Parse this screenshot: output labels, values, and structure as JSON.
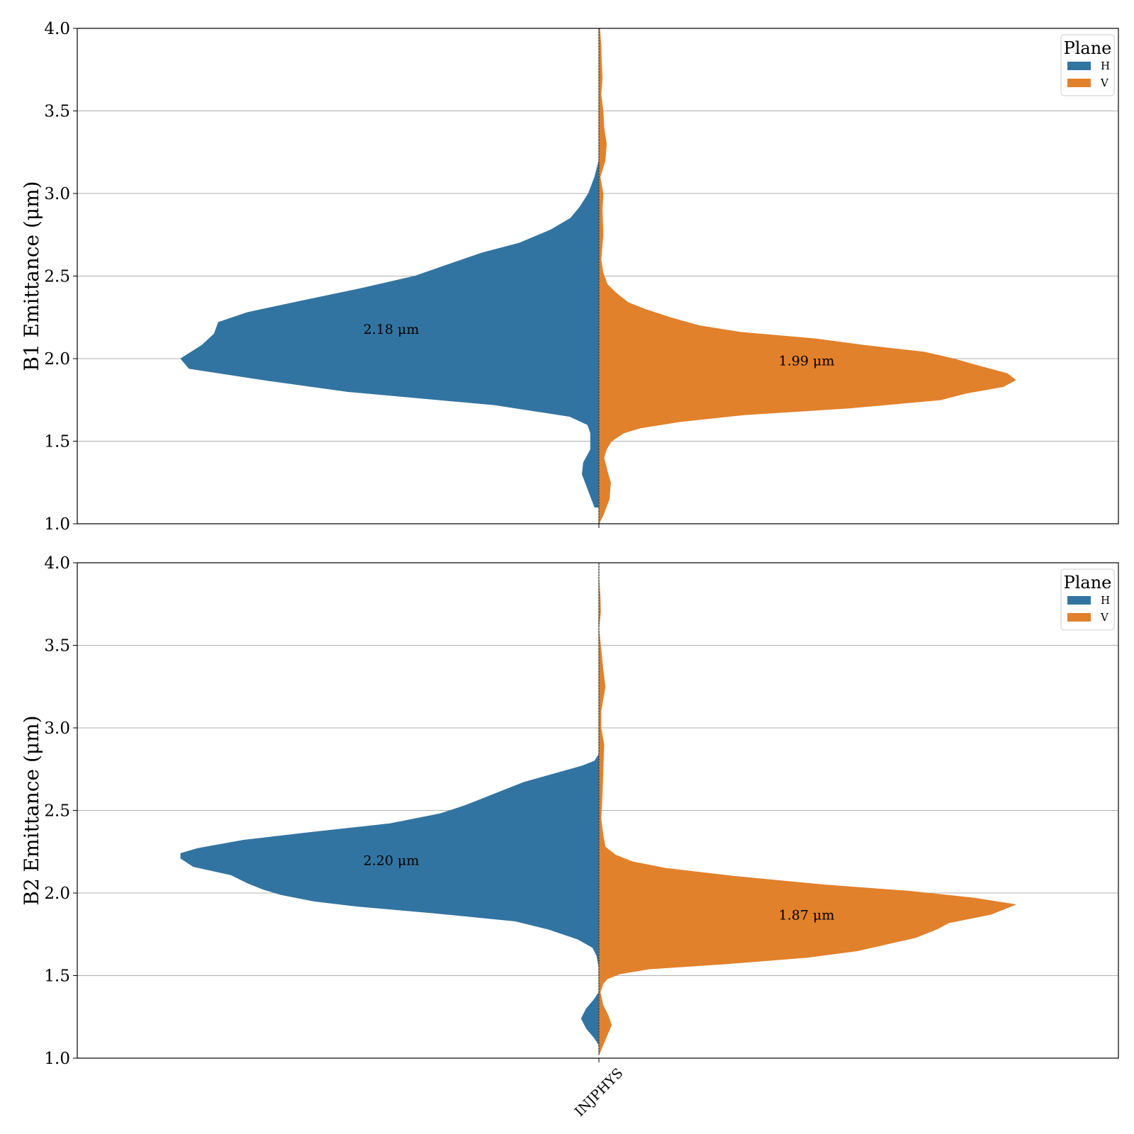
{
  "chart_data": [
    {
      "type": "violin",
      "ylabel": "B1 Emittance (μm)",
      "ylim": [
        1.0,
        4.0
      ],
      "yticks": [
        "1.0",
        "1.5",
        "2.0",
        "2.5",
        "3.0",
        "3.5",
        "4.0"
      ],
      "grid": true,
      "categories": [
        "INJPHYS"
      ],
      "legend": {
        "title": "Plane",
        "placement": "top-right"
      },
      "series": [
        {
          "name": "H",
          "color": "#3274a1",
          "side": "left",
          "annotation": {
            "label": "2.18 μm",
            "y": 2.18
          },
          "profile": [
            [
              1.1,
              0.01
            ],
            [
              1.2,
              0.025
            ],
            [
              1.3,
              0.04
            ],
            [
              1.37,
              0.037
            ],
            [
              1.45,
              0.02
            ],
            [
              1.55,
              0.02
            ],
            [
              1.6,
              0.027
            ],
            [
              1.65,
              0.07
            ],
            [
              1.72,
              0.25
            ],
            [
              1.8,
              0.6
            ],
            [
              1.87,
              0.8
            ],
            [
              1.94,
              0.98
            ],
            [
              2.0,
              1.0
            ],
            [
              2.08,
              0.95
            ],
            [
              2.15,
              0.92
            ],
            [
              2.22,
              0.91
            ],
            [
              2.28,
              0.84
            ],
            [
              2.35,
              0.71
            ],
            [
              2.43,
              0.56
            ],
            [
              2.5,
              0.44
            ],
            [
              2.57,
              0.36
            ],
            [
              2.64,
              0.28
            ],
            [
              2.7,
              0.19
            ],
            [
              2.78,
              0.115
            ],
            [
              2.85,
              0.068
            ],
            [
              2.92,
              0.045
            ],
            [
              3.0,
              0.025
            ],
            [
              3.1,
              0.01
            ],
            [
              3.2,
              0.0
            ]
          ]
        },
        {
          "name": "V",
          "color": "#e1812c",
          "side": "right",
          "annotation": {
            "label": "1.99 μm",
            "y": 1.99
          },
          "profile": [
            [
              1.0,
              0.0
            ],
            [
              1.05,
              0.01
            ],
            [
              1.15,
              0.025
            ],
            [
              1.25,
              0.028
            ],
            [
              1.32,
              0.02
            ],
            [
              1.4,
              0.012
            ],
            [
              1.45,
              0.018
            ],
            [
              1.5,
              0.03
            ],
            [
              1.55,
              0.06
            ],
            [
              1.58,
              0.1
            ],
            [
              1.62,
              0.2
            ],
            [
              1.66,
              0.35
            ],
            [
              1.7,
              0.6
            ],
            [
              1.75,
              0.82
            ],
            [
              1.79,
              0.88
            ],
            [
              1.83,
              0.97
            ],
            [
              1.87,
              1.0
            ],
            [
              1.91,
              0.98
            ],
            [
              1.95,
              0.92
            ],
            [
              2.0,
              0.85
            ],
            [
              2.04,
              0.78
            ],
            [
              2.08,
              0.64
            ],
            [
              2.12,
              0.52
            ],
            [
              2.16,
              0.34
            ],
            [
              2.2,
              0.24
            ],
            [
              2.25,
              0.17
            ],
            [
              2.3,
              0.11
            ],
            [
              2.34,
              0.07
            ],
            [
              2.4,
              0.04
            ],
            [
              2.45,
              0.02
            ],
            [
              2.52,
              0.01
            ],
            [
              2.6,
              0.005
            ],
            [
              2.75,
              0.01
            ],
            [
              2.9,
              0.008
            ],
            [
              3.0,
              0.01
            ],
            [
              3.1,
              0.003
            ],
            [
              3.2,
              0.015
            ],
            [
              3.3,
              0.018
            ],
            [
              3.4,
              0.012
            ],
            [
              3.5,
              0.01
            ],
            [
              3.6,
              0.005
            ],
            [
              3.7,
              0.008
            ],
            [
              3.8,
              0.006
            ],
            [
              3.9,
              0.005
            ],
            [
              4.0,
              0.002
            ]
          ]
        }
      ]
    },
    {
      "type": "violin",
      "ylabel": "B2 Emittance (μm)",
      "ylim": [
        1.0,
        4.0
      ],
      "yticks": [
        "1.0",
        "1.5",
        "2.0",
        "2.5",
        "3.0",
        "3.5",
        "4.0"
      ],
      "grid": true,
      "categories": [
        "INJPHYS"
      ],
      "legend": {
        "title": "Plane",
        "placement": "top-right"
      },
      "series": [
        {
          "name": "H",
          "color": "#3274a1",
          "side": "left",
          "annotation": {
            "label": "2.20 μm",
            "y": 2.2
          },
          "profile": [
            [
              1.08,
              0.0
            ],
            [
              1.12,
              0.01
            ],
            [
              1.18,
              0.03
            ],
            [
              1.24,
              0.042
            ],
            [
              1.3,
              0.03
            ],
            [
              1.36,
              0.01
            ],
            [
              1.4,
              0.0
            ],
            [
              1.55,
              0.0
            ],
            [
              1.62,
              0.005
            ],
            [
              1.67,
              0.015
            ],
            [
              1.72,
              0.05
            ],
            [
              1.78,
              0.12
            ],
            [
              1.83,
              0.2
            ],
            [
              1.88,
              0.4
            ],
            [
              1.92,
              0.58
            ],
            [
              1.95,
              0.68
            ],
            [
              1.99,
              0.76
            ],
            [
              2.02,
              0.8
            ],
            [
              2.06,
              0.84
            ],
            [
              2.11,
              0.88
            ],
            [
              2.16,
              0.97
            ],
            [
              2.21,
              1.0
            ],
            [
              2.24,
              1.0
            ],
            [
              2.27,
              0.96
            ],
            [
              2.32,
              0.85
            ],
            [
              2.37,
              0.68
            ],
            [
              2.42,
              0.5
            ],
            [
              2.48,
              0.38
            ],
            [
              2.53,
              0.32
            ],
            [
              2.57,
              0.28
            ],
            [
              2.62,
              0.23
            ],
            [
              2.67,
              0.18
            ],
            [
              2.72,
              0.11
            ],
            [
              2.77,
              0.04
            ],
            [
              2.8,
              0.01
            ],
            [
              2.84,
              0.0
            ]
          ]
        },
        {
          "name": "V",
          "color": "#e1812c",
          "side": "right",
          "annotation": {
            "label": "1.87 μm",
            "y": 1.87
          },
          "profile": [
            [
              1.02,
              0.0
            ],
            [
              1.08,
              0.01
            ],
            [
              1.14,
              0.02
            ],
            [
              1.2,
              0.03
            ],
            [
              1.26,
              0.022
            ],
            [
              1.32,
              0.01
            ],
            [
              1.4,
              0.003
            ],
            [
              1.45,
              0.01
            ],
            [
              1.48,
              0.02
            ],
            [
              1.51,
              0.05
            ],
            [
              1.54,
              0.12
            ],
            [
              1.57,
              0.3
            ],
            [
              1.61,
              0.5
            ],
            [
              1.65,
              0.62
            ],
            [
              1.69,
              0.69
            ],
            [
              1.73,
              0.76
            ],
            [
              1.78,
              0.81
            ],
            [
              1.82,
              0.84
            ],
            [
              1.87,
              0.94
            ],
            [
              1.9,
              0.97
            ],
            [
              1.93,
              1.0
            ],
            [
              1.97,
              0.9
            ],
            [
              2.01,
              0.75
            ],
            [
              2.05,
              0.54
            ],
            [
              2.1,
              0.33
            ],
            [
              2.15,
              0.16
            ],
            [
              2.19,
              0.08
            ],
            [
              2.23,
              0.04
            ],
            [
              2.28,
              0.015
            ],
            [
              2.35,
              0.01
            ],
            [
              2.45,
              0.005
            ],
            [
              2.6,
              0.008
            ],
            [
              2.75,
              0.01
            ],
            [
              2.9,
              0.012
            ],
            [
              3.0,
              0.005
            ],
            [
              3.1,
              0.005
            ],
            [
              3.25,
              0.015
            ],
            [
              3.35,
              0.01
            ],
            [
              3.45,
              0.006
            ],
            [
              3.6,
              0.0
            ],
            [
              3.7,
              0.004
            ],
            [
              3.8,
              0.003
            ],
            [
              3.9,
              0.0
            ],
            [
              4.0,
              0.0
            ]
          ]
        }
      ]
    }
  ]
}
